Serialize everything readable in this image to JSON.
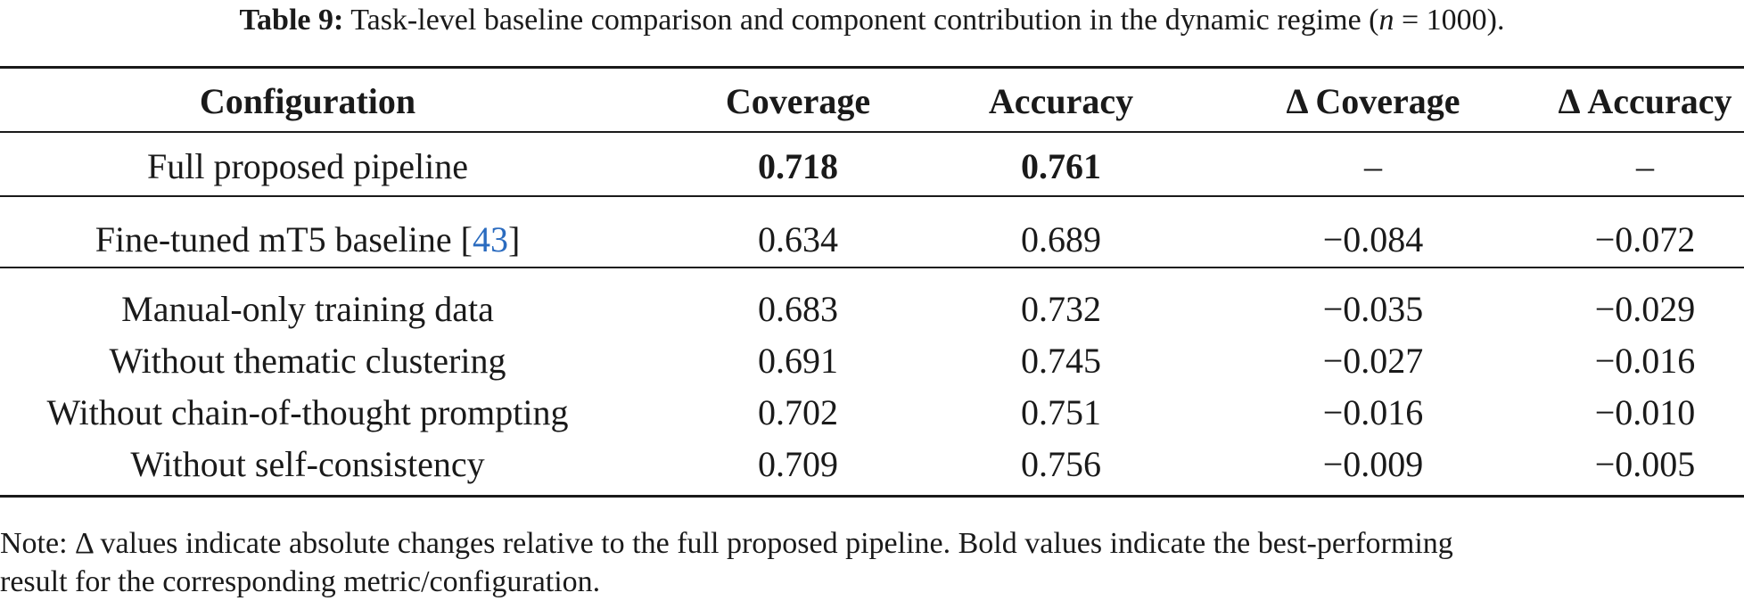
{
  "caption": {
    "label": "Table 9:",
    "text_before": "Task-level baseline comparison and component contribution in the dynamic regime (",
    "n_symbol": "n",
    "text_after": " = 1000)."
  },
  "table": {
    "headers": [
      "Configuration",
      "Coverage",
      "Accuracy",
      "Δ Coverage",
      "Δ Accuracy"
    ],
    "full_pipeline": {
      "configuration": "Full proposed pipeline",
      "coverage": "0.718",
      "accuracy": "0.761",
      "delta_coverage": "–",
      "delta_accuracy": "–"
    },
    "baseline": {
      "configuration_text": "Fine-tuned mT5 baseline [",
      "citation": "43",
      "configuration_close": "]",
      "coverage": "0.634",
      "accuracy": "0.689",
      "delta_coverage": "−0.084",
      "delta_accuracy": "−0.072"
    },
    "ablations": [
      {
        "configuration": "Manual-only training data",
        "coverage": "0.683",
        "accuracy": "0.732",
        "delta_coverage": "−0.035",
        "delta_accuracy": "−0.029"
      },
      {
        "configuration": "Without thematic clustering",
        "coverage": "0.691",
        "accuracy": "0.745",
        "delta_coverage": "−0.027",
        "delta_accuracy": "−0.016"
      },
      {
        "configuration": "Without chain-of-thought prompting",
        "coverage": "0.702",
        "accuracy": "0.751",
        "delta_coverage": "−0.016",
        "delta_accuracy": "−0.010"
      },
      {
        "configuration": "Without self-consistency",
        "coverage": "0.709",
        "accuracy": "0.756",
        "delta_coverage": "−0.009",
        "delta_accuracy": "−0.005"
      }
    ]
  },
  "note": {
    "line1": "Note: Δ values indicate absolute changes relative to the full proposed pipeline. Bold values indicate the best-performing",
    "line2": "result for the corresponding metric/configuration."
  },
  "colors": {
    "text": "#1a1a1a",
    "citation": "#2a6bbf"
  }
}
